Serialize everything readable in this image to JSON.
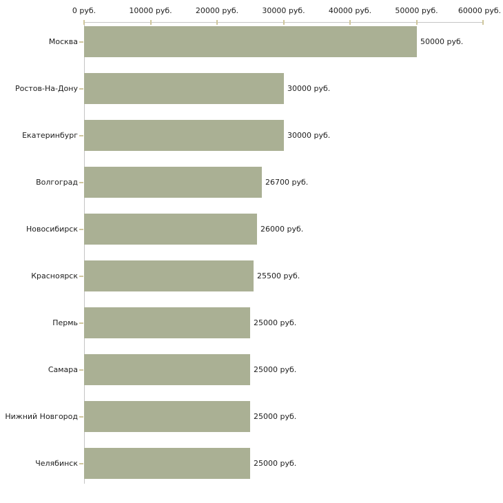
{
  "chart_data": {
    "type": "bar",
    "orientation": "horizontal",
    "title": "",
    "categories": [
      "Москва",
      "Ростов-На-Дону",
      "Екатеринбург",
      "Волгоград",
      "Новосибирск",
      "Красноярск",
      "Пермь",
      "Самара",
      "Нижний Новгород",
      "Челябинск"
    ],
    "values": [
      50000,
      30000,
      30000,
      26700,
      26000,
      25500,
      25000,
      25000,
      25000,
      25000
    ],
    "bar_labels": [
      "50000 руб.",
      "30000 руб.",
      "30000 руб.",
      "26700 руб.",
      "26000 руб.",
      "25500 руб.",
      "25000 руб.",
      "25000 руб.",
      "25000 руб.",
      "25000 руб."
    ],
    "x_axis": {
      "tick_labels": [
        "0 руб.",
        "10000 руб.",
        "20000 руб.",
        "30000 руб.",
        "40000 руб.",
        "50000 руб.",
        "60000 руб."
      ],
      "tick_values": [
        0,
        10000,
        20000,
        30000,
        40000,
        50000,
        60000
      ],
      "xlim": [
        0,
        60000
      ],
      "unit": "руб.",
      "position": "top"
    },
    "layout": {
      "grid": false,
      "legend": false,
      "value_labels_position": "right-of-bar"
    },
    "colors": {
      "bar": "#aab094",
      "axis_line": "#c4c4c4",
      "tick": "#cfc69c",
      "text": "#1c1c1c",
      "background": "#ffffff"
    }
  }
}
